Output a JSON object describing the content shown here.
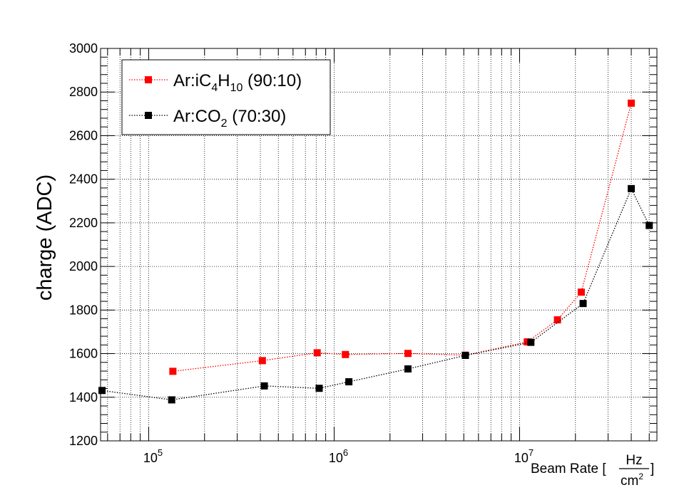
{
  "chart_data": {
    "type": "line",
    "xscale": "log",
    "ylabel": "charge (ADC)",
    "xlabel": {
      "prefix": "Beam Rate [",
      "numerator": "Hz",
      "denominator": "cm",
      "denominator_sup": "2",
      "suffix": "]"
    },
    "xlim": [
      55000,
      55000000
    ],
    "ylim": [
      1200,
      3000
    ],
    "y_ticks": [
      1200,
      1400,
      1600,
      1800,
      2000,
      2200,
      2400,
      2600,
      2800,
      3000
    ],
    "x_ticks": [
      {
        "value": 100000,
        "base": "10",
        "exp": "5"
      },
      {
        "value": 1000000,
        "base": "10",
        "exp": "6"
      },
      {
        "value": 10000000,
        "base": "10",
        "exp": "7"
      }
    ],
    "grid": true,
    "legend_position": "top-left",
    "series": [
      {
        "name": "Ar:iC4H10 (90:10)",
        "legend_parts": [
          {
            "t": "Ar:iC"
          },
          {
            "t": "4",
            "sub": true
          },
          {
            "t": "H"
          },
          {
            "t": "10",
            "sub": true
          },
          {
            "t": " (90:10)"
          }
        ],
        "color": "#ff0000",
        "points": [
          {
            "x": 135000,
            "y": 1519
          },
          {
            "x": 410000,
            "y": 1568
          },
          {
            "x": 810000,
            "y": 1604
          },
          {
            "x": 1150000,
            "y": 1596
          },
          {
            "x": 2500000,
            "y": 1601
          },
          {
            "x": 5100000,
            "y": 1593
          },
          {
            "x": 11000000,
            "y": 1654
          },
          {
            "x": 16000000,
            "y": 1755
          },
          {
            "x": 21500000,
            "y": 1882
          },
          {
            "x": 40000000,
            "y": 2749
          }
        ]
      },
      {
        "name": "Ar:CO2 (70:30)",
        "legend_parts": [
          {
            "t": "Ar:CO"
          },
          {
            "t": "2",
            "sub": true
          },
          {
            "t": " (70:30)"
          }
        ],
        "color": "#000000",
        "points": [
          {
            "x": 56000,
            "y": 1431
          },
          {
            "x": 133000,
            "y": 1388
          },
          {
            "x": 420000,
            "y": 1452
          },
          {
            "x": 830000,
            "y": 1441
          },
          {
            "x": 1200000,
            "y": 1471
          },
          {
            "x": 2500000,
            "y": 1530
          },
          {
            "x": 5100000,
            "y": 1592
          },
          {
            "x": 11500000,
            "y": 1652
          },
          {
            "x": 22000000,
            "y": 1830
          },
          {
            "x": 40000000,
            "y": 2357
          },
          {
            "x": 50000000,
            "y": 2188
          }
        ]
      }
    ]
  }
}
